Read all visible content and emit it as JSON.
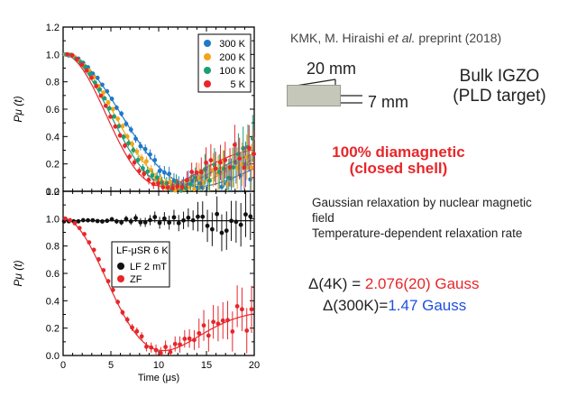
{
  "annotations": {
    "credit_pre": "KMK, M. Hiraishi ",
    "credit_etal": "et al.",
    "credit_post": " preprint (2018)",
    "dim_width": "20 mm",
    "dim_height": "7 mm",
    "sample_line1": "Bulk IGZO",
    "sample_line2": "(PLD target)",
    "diamagnetic_line1": "100% diamagnetic",
    "diamagnetic_line2": "(closed shell)",
    "desc_line1": "Gaussian relaxation by nuclear magnetic field",
    "desc_line2": "Temperature-dependent relaxation rate",
    "delta4k_label": "Δ(4K) = ",
    "delta4k_value": "2.076(20) Gauss",
    "delta300k_label": "Δ(300K)=",
    "delta300k_value": "1.47 Gauss"
  },
  "colors": {
    "red": "#e8262a",
    "blue": "#1f4fe0"
  },
  "chart_data": [
    {
      "type": "scatter",
      "panel": "top",
      "xlabel": "Time (μs)",
      "ylabel": "Pμ (t)",
      "xlim": [
        0,
        20
      ],
      "ylim": [
        0.0,
        1.2
      ],
      "xticks": [
        "0",
        "5",
        "10",
        "15",
        "20"
      ],
      "yticks": [
        "0.0",
        "0.2",
        "0.4",
        "0.6",
        "0.8",
        "1.0",
        "1.2"
      ],
      "legend_position": "top-right",
      "series": [
        {
          "name": "300 K",
          "color": "#1f78c8",
          "delta": 0.122
        },
        {
          "name": "200 K",
          "color": "#f2a51a",
          "delta": 0.138
        },
        {
          "name": "100 K",
          "color": "#1d9e73",
          "delta": 0.15
        },
        {
          "name": "5 K",
          "color": "#e8262a",
          "delta": 0.165
        }
      ]
    },
    {
      "type": "scatter",
      "panel": "bottom",
      "xlabel": "Time (μs)",
      "ylabel": "Pμ (t)",
      "xlim": [
        0,
        20
      ],
      "ylim": [
        0.0,
        1.2
      ],
      "xticks": [
        "0",
        "5",
        "10",
        "15",
        "20"
      ],
      "yticks": [
        "0.0",
        "0.2",
        "0.4",
        "0.6",
        "0.8",
        "1.0",
        "1.2"
      ],
      "legend_title": "LF-μSR 6 K",
      "legend_position": "center-left",
      "series": [
        {
          "name": "LF 2 mT",
          "color": "#111111",
          "delta": 0.0
        },
        {
          "name": "ZF",
          "color": "#e8262a",
          "delta": 0.165
        }
      ]
    }
  ]
}
